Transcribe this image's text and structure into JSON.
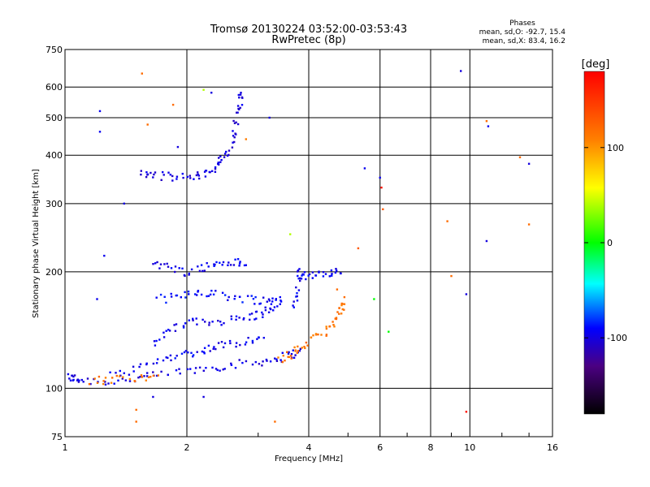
{
  "chart_data": {
    "type": "scatter",
    "title": "Tromsø 20130224 03:52:00-03:53:43",
    "subtitle": "RwPretec (8p)",
    "xlabel": "Frequency [MHz]",
    "ylabel": "Stationary phase Virtual Height [km]",
    "x_scale": "log",
    "y_scale": "log",
    "xlim": [
      1,
      16
    ],
    "ylim": [
      75,
      750
    ],
    "x_ticks": [
      1,
      2,
      4,
      6,
      8,
      10,
      16
    ],
    "x_tick_labels": [
      "1",
      "2",
      "4",
      "6",
      "8",
      "10",
      "16"
    ],
    "y_ticks": [
      75,
      100,
      200,
      300,
      400,
      500,
      600,
      750
    ],
    "y_tick_labels": [
      "75",
      "100",
      "200",
      "300",
      "400",
      "500",
      "600",
      "750"
    ],
    "grid": true,
    "phases_box": {
      "heading": "Phases",
      "line1": "mean, sd,O: -92.7, 15.4",
      "line2": "mean, sd,X:  83.4, 16.2"
    },
    "colorbar": {
      "label": "[deg]",
      "range": [
        -180,
        180
      ],
      "tick_values": [
        -100,
        0,
        100
      ],
      "tick_labels": [
        "-100",
        "0",
        "100"
      ]
    },
    "traces": [
      {
        "phase": -100,
        "points": [
          [
            1.02,
            107
          ],
          [
            1.05,
            106
          ],
          [
            1.1,
            105
          ],
          [
            1.3,
            104
          ],
          [
            1.5,
            106
          ],
          [
            1.7,
            108
          ],
          [
            2.0,
            111
          ],
          [
            2.3,
            113
          ],
          [
            2.6,
            115
          ],
          [
            3.0,
            117
          ],
          [
            3.3,
            119
          ],
          [
            3.6,
            122
          ],
          [
            3.8,
            125
          ]
        ]
      },
      {
        "phase": -95,
        "points": [
          [
            1.3,
            108
          ],
          [
            1.5,
            112
          ],
          [
            1.7,
            118
          ],
          [
            1.9,
            122
          ],
          [
            2.1,
            124
          ],
          [
            2.3,
            127
          ],
          [
            2.5,
            130
          ],
          [
            2.8,
            133
          ],
          [
            3.1,
            135
          ]
        ]
      },
      {
        "phase": -95,
        "points": [
          [
            1.65,
            130
          ],
          [
            1.8,
            140
          ],
          [
            2.0,
            148
          ],
          [
            2.2,
            148
          ],
          [
            2.5,
            150
          ],
          [
            2.8,
            152
          ],
          [
            3.0,
            155
          ],
          [
            3.2,
            160
          ],
          [
            3.4,
            165
          ]
        ]
      },
      {
        "phase": -92,
        "points": [
          [
            1.7,
            170
          ],
          [
            1.9,
            172
          ],
          [
            2.1,
            178
          ],
          [
            2.3,
            176
          ],
          [
            2.6,
            172
          ],
          [
            2.9,
            170
          ],
          [
            3.2,
            168
          ],
          [
            3.4,
            172
          ]
        ]
      },
      {
        "phase": -95,
        "points": [
          [
            1.65,
            210
          ],
          [
            1.8,
            205
          ],
          [
            2.0,
            200
          ],
          [
            2.2,
            205
          ],
          [
            2.4,
            210
          ],
          [
            2.6,
            212
          ],
          [
            2.8,
            208
          ]
        ]
      },
      {
        "phase": -100,
        "points": [
          [
            1.55,
            360
          ],
          [
            1.65,
            355
          ],
          [
            1.8,
            352
          ],
          [
            2.0,
            350
          ],
          [
            2.15,
            355
          ],
          [
            2.3,
            365
          ],
          [
            2.4,
            380
          ],
          [
            2.5,
            400
          ],
          [
            2.6,
            440
          ],
          [
            2.65,
            490
          ],
          [
            2.7,
            540
          ],
          [
            2.72,
            580
          ]
        ]
      },
      {
        "phase": -95,
        "points": [
          [
            3.7,
            160
          ],
          [
            3.75,
            180
          ],
          [
            3.8,
            200
          ],
          [
            3.9,
            195
          ],
          [
            4.2,
            198
          ],
          [
            4.5,
            200
          ],
          [
            4.8,
            198
          ]
        ]
      },
      {
        "phase": 115,
        "points": [
          [
            1.15,
            105
          ],
          [
            1.3,
            105
          ],
          [
            1.5,
            107
          ],
          [
            1.7,
            108
          ]
        ]
      },
      {
        "phase": 115,
        "points": [
          [
            3.4,
            118
          ],
          [
            3.6,
            122
          ],
          [
            3.8,
            127
          ],
          [
            4.1,
            133
          ],
          [
            4.4,
            140
          ],
          [
            4.6,
            148
          ],
          [
            4.8,
            158
          ],
          [
            4.9,
            165
          ]
        ]
      }
    ],
    "scattered_points": [
      {
        "x": 1.22,
        "y": 520,
        "phase": -95
      },
      {
        "x": 1.22,
        "y": 460,
        "phase": -95
      },
      {
        "x": 1.25,
        "y": 220,
        "phase": -95
      },
      {
        "x": 1.2,
        "y": 170,
        "phase": -95
      },
      {
        "x": 1.4,
        "y": 300,
        "phase": -100
      },
      {
        "x": 1.55,
        "y": 650,
        "phase": 120
      },
      {
        "x": 1.6,
        "y": 480,
        "phase": 120
      },
      {
        "x": 1.85,
        "y": 540,
        "phase": 120
      },
      {
        "x": 1.9,
        "y": 420,
        "phase": -100
      },
      {
        "x": 2.2,
        "y": 590,
        "phase": 40
      },
      {
        "x": 2.3,
        "y": 580,
        "phase": -100
      },
      {
        "x": 2.8,
        "y": 440,
        "phase": 110
      },
      {
        "x": 3.2,
        "y": 500,
        "phase": -100
      },
      {
        "x": 3.6,
        "y": 250,
        "phase": 40
      },
      {
        "x": 5.5,
        "y": 370,
        "phase": -95
      },
      {
        "x": 6.0,
        "y": 350,
        "phase": -95
      },
      {
        "x": 6.05,
        "y": 330,
        "phase": 170
      },
      {
        "x": 6.1,
        "y": 290,
        "phase": 130
      },
      {
        "x": 5.3,
        "y": 230,
        "phase": 130
      },
      {
        "x": 5.8,
        "y": 170,
        "phase": 0
      },
      {
        "x": 6.3,
        "y": 140,
        "phase": 0
      },
      {
        "x": 8.8,
        "y": 270,
        "phase": 120
      },
      {
        "x": 9.0,
        "y": 195,
        "phase": 120
      },
      {
        "x": 9.5,
        "y": 660,
        "phase": -100
      },
      {
        "x": 9.8,
        "y": 87,
        "phase": 170
      },
      {
        "x": 11.0,
        "y": 490,
        "phase": 120
      },
      {
        "x": 11.1,
        "y": 475,
        "phase": -95
      },
      {
        "x": 11.0,
        "y": 240,
        "phase": -100
      },
      {
        "x": 9.8,
        "y": 175,
        "phase": -100
      },
      {
        "x": 13.3,
        "y": 395,
        "phase": 120
      },
      {
        "x": 14.0,
        "y": 380,
        "phase": -100
      },
      {
        "x": 14.0,
        "y": 265,
        "phase": 120
      },
      {
        "x": 1.5,
        "y": 88,
        "phase": 120
      },
      {
        "x": 1.5,
        "y": 82,
        "phase": 120
      },
      {
        "x": 2.2,
        "y": 95,
        "phase": -100
      },
      {
        "x": 3.3,
        "y": 82,
        "phase": 120
      },
      {
        "x": 1.65,
        "y": 95,
        "phase": -100
      },
      {
        "x": 4.7,
        "y": 180,
        "phase": 120
      },
      {
        "x": 4.9,
        "y": 172,
        "phase": 120
      }
    ]
  }
}
